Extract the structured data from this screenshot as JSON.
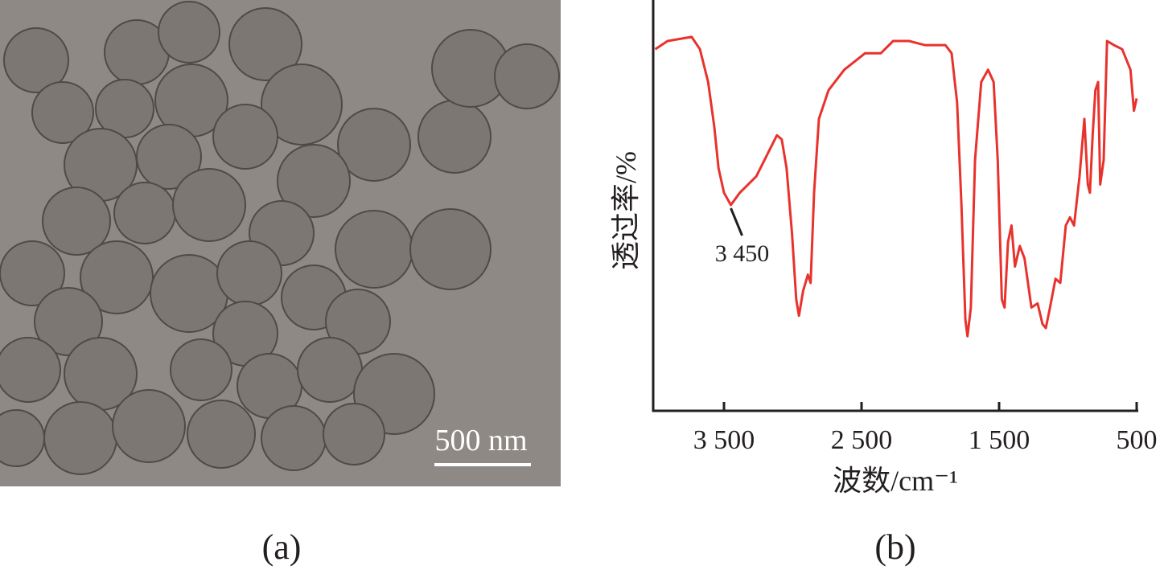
{
  "scale_bar_label": "500 nm",
  "captions": [
    "(a)",
    "(b)"
  ],
  "chart_data": {
    "type": "line",
    "x_label": "波数/cm⁻¹",
    "y_label": "透过率/%",
    "xlim": [
      4000,
      500
    ],
    "xticks": [
      {
        "value": 3500,
        "label": "3 500"
      },
      {
        "value": 2500,
        "label": "2 500"
      },
      {
        "value": 1500,
        "label": "1 500"
      },
      500
    ],
    "ylim": [
      0,
      100
    ],
    "annotations": [
      {
        "text": "3 450",
        "x": 3450
      }
    ],
    "series": [
      {
        "color": "#e8322d",
        "x": [
          4000,
          3910,
          3735,
          3675,
          3615,
          3570,
          3540,
          3500,
          3450,
          3385,
          3265,
          3160,
          3115,
          3080,
          3045,
          3005,
          2975,
          2955,
          2925,
          2890,
          2870,
          2845,
          2810,
          2740,
          2625,
          2475,
          2360,
          2270,
          2155,
          2040,
          1890,
          1845,
          1805,
          1775,
          1745,
          1730,
          1705,
          1675,
          1630,
          1580,
          1540,
          1510,
          1480,
          1460,
          1435,
          1410,
          1385,
          1350,
          1315,
          1265,
          1220,
          1185,
          1160,
          1130,
          1090,
          1055,
          1015,
          985,
          955,
          915,
          880,
          855,
          840,
          820,
          800,
          780,
          765,
          740,
          715,
          665,
          605,
          545,
          520,
          500
        ],
        "values": [
          88,
          90,
          91,
          88,
          80,
          69,
          59,
          53,
          50,
          53,
          57,
          64,
          67,
          66,
          59,
          43,
          27,
          23,
          29,
          33,
          31,
          53,
          71,
          78,
          83,
          87,
          87,
          90,
          90,
          89,
          89,
          87,
          75,
          51,
          22,
          18,
          25,
          61,
          80,
          83,
          80,
          61,
          27,
          25,
          41,
          45,
          35,
          40,
          37,
          25,
          26,
          21,
          20,
          25,
          32,
          31,
          45,
          47,
          45,
          57,
          71,
          55,
          53,
          67,
          78,
          80,
          55,
          61,
          90,
          89,
          88,
          83,
          73,
          76
        ]
      }
    ]
  }
}
